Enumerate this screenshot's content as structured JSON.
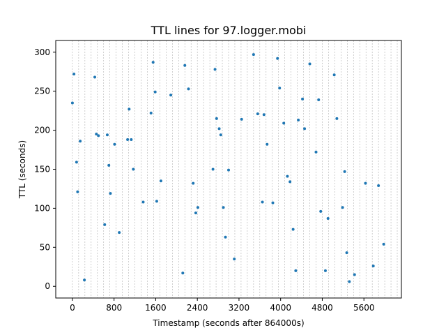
{
  "chart_data": {
    "type": "scatter",
    "title": "TTL lines for 97.logger.mobi",
    "xlabel": "Timestamp (seconds after 864000s)",
    "ylabel": "TTL (seconds)",
    "xlim": [
      -320,
      6320
    ],
    "ylim": [
      -15,
      315
    ],
    "xticks": [
      0,
      800,
      1600,
      2400,
      3200,
      4000,
      4800,
      5600
    ],
    "yticks": [
      0,
      50,
      100,
      150,
      200,
      250,
      300
    ],
    "vlines_every": 120,
    "vlines_color": "#b0b0b0",
    "marker_color": "#1f77b4",
    "grid": false,
    "points": [
      {
        "x": 0,
        "y": 235
      },
      {
        "x": 30,
        "y": 272
      },
      {
        "x": 80,
        "y": 159
      },
      {
        "x": 100,
        "y": 121
      },
      {
        "x": 150,
        "y": 186
      },
      {
        "x": 230,
        "y": 8
      },
      {
        "x": 430,
        "y": 268
      },
      {
        "x": 460,
        "y": 195
      },
      {
        "x": 500,
        "y": 193
      },
      {
        "x": 620,
        "y": 79
      },
      {
        "x": 670,
        "y": 194
      },
      {
        "x": 700,
        "y": 155
      },
      {
        "x": 730,
        "y": 119
      },
      {
        "x": 810,
        "y": 182
      },
      {
        "x": 900,
        "y": 69
      },
      {
        "x": 1060,
        "y": 188
      },
      {
        "x": 1090,
        "y": 227
      },
      {
        "x": 1130,
        "y": 188
      },
      {
        "x": 1170,
        "y": 150
      },
      {
        "x": 1360,
        "y": 108
      },
      {
        "x": 1510,
        "y": 222
      },
      {
        "x": 1550,
        "y": 287
      },
      {
        "x": 1590,
        "y": 249
      },
      {
        "x": 1620,
        "y": 109
      },
      {
        "x": 1700,
        "y": 135
      },
      {
        "x": 1890,
        "y": 245
      },
      {
        "x": 2120,
        "y": 17
      },
      {
        "x": 2160,
        "y": 283
      },
      {
        "x": 2230,
        "y": 253
      },
      {
        "x": 2320,
        "y": 132
      },
      {
        "x": 2370,
        "y": 94
      },
      {
        "x": 2410,
        "y": 101
      },
      {
        "x": 2700,
        "y": 150
      },
      {
        "x": 2740,
        "y": 278
      },
      {
        "x": 2770,
        "y": 215
      },
      {
        "x": 2820,
        "y": 202
      },
      {
        "x": 2850,
        "y": 194
      },
      {
        "x": 2900,
        "y": 101
      },
      {
        "x": 2940,
        "y": 63
      },
      {
        "x": 3000,
        "y": 149
      },
      {
        "x": 3110,
        "y": 35
      },
      {
        "x": 3250,
        "y": 214
      },
      {
        "x": 3480,
        "y": 297
      },
      {
        "x": 3560,
        "y": 221
      },
      {
        "x": 3650,
        "y": 108
      },
      {
        "x": 3680,
        "y": 220
      },
      {
        "x": 3740,
        "y": 182
      },
      {
        "x": 3850,
        "y": 107
      },
      {
        "x": 3940,
        "y": 292
      },
      {
        "x": 3980,
        "y": 254
      },
      {
        "x": 4060,
        "y": 209
      },
      {
        "x": 4130,
        "y": 141
      },
      {
        "x": 4180,
        "y": 134
      },
      {
        "x": 4240,
        "y": 73
      },
      {
        "x": 4290,
        "y": 20
      },
      {
        "x": 4340,
        "y": 213
      },
      {
        "x": 4420,
        "y": 240
      },
      {
        "x": 4460,
        "y": 202
      },
      {
        "x": 4560,
        "y": 285
      },
      {
        "x": 4680,
        "y": 172
      },
      {
        "x": 4730,
        "y": 239
      },
      {
        "x": 4770,
        "y": 96
      },
      {
        "x": 4860,
        "y": 20
      },
      {
        "x": 4910,
        "y": 87
      },
      {
        "x": 5030,
        "y": 271
      },
      {
        "x": 5080,
        "y": 215
      },
      {
        "x": 5190,
        "y": 101
      },
      {
        "x": 5230,
        "y": 147
      },
      {
        "x": 5270,
        "y": 43
      },
      {
        "x": 5320,
        "y": 6
      },
      {
        "x": 5420,
        "y": 15
      },
      {
        "x": 5630,
        "y": 132
      },
      {
        "x": 5780,
        "y": 26
      },
      {
        "x": 5880,
        "y": 129
      },
      {
        "x": 5980,
        "y": 54
      }
    ]
  }
}
